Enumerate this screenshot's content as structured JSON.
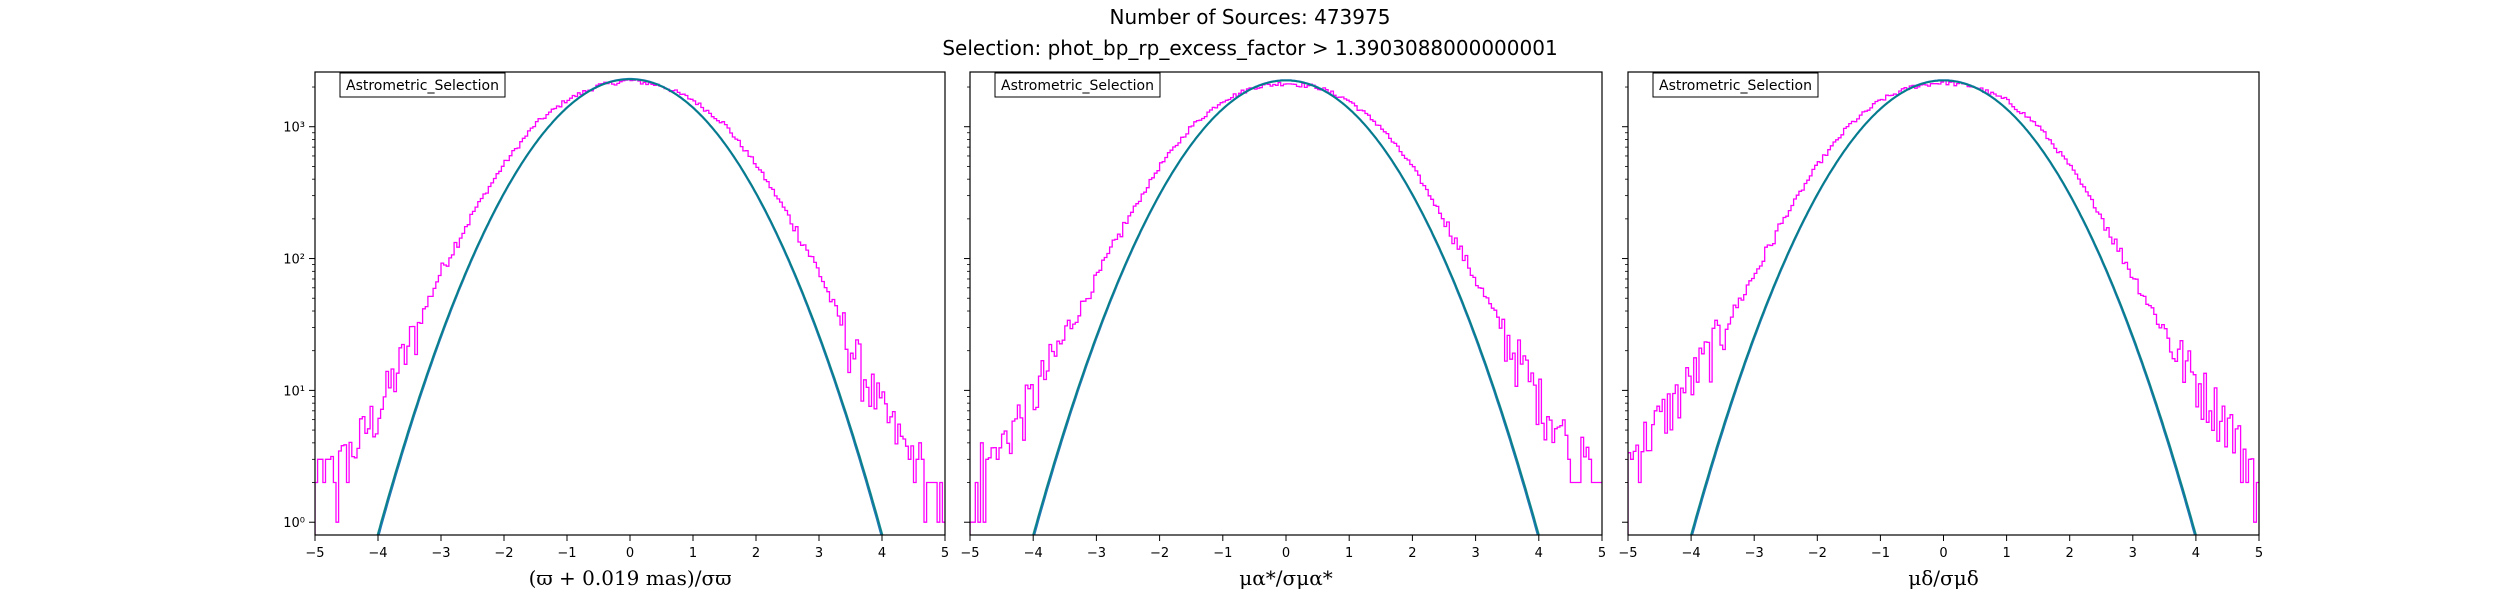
{
  "figure": {
    "title_line1": "Number of Sources: 473975",
    "title_line2": "Selection: phot_bp_rp_excess_factor > 1.3903088000000001"
  },
  "colors": {
    "histogram": "#ff00ff",
    "gaussian_fit": "#1f77b4",
    "gaussian_fit_overlay": "#008080",
    "axes": "#000000"
  },
  "chart_data": [
    {
      "type": "line",
      "panel": "left",
      "yscale": "log",
      "xlim": [
        -5,
        5
      ],
      "ylim": [
        0.8,
        2600
      ],
      "xticks": [
        -5,
        -4,
        -3,
        -2,
        -1,
        0,
        1,
        2,
        3,
        4,
        5
      ],
      "xtick_labels": [
        "−5",
        "−4",
        "−3",
        "−2",
        "−1",
        "0",
        "1",
        "2",
        "3",
        "4",
        "5"
      ],
      "yticks": [
        1,
        10,
        100,
        1000
      ],
      "ytick_labels": [
        "10⁰",
        "10¹",
        "10²",
        "10³"
      ],
      "xlabel": "(ϖ + 0.019 mas)/σϖ",
      "legend": "Astrometric_Selection",
      "legend_position": "top-left",
      "grid": false,
      "series": [
        {
          "name": "Astrometric_Selection",
          "kind": "histogram",
          "x": [
            -5,
            -4.5,
            -4,
            -3.5,
            -3,
            -2.5,
            -2,
            -1.5,
            -1,
            -0.5,
            0,
            0.5,
            1,
            1.5,
            2,
            2.5,
            3,
            3.5,
            4,
            4.5,
            5
          ],
          "y": [
            2,
            3,
            7,
            22,
            80,
            220,
            520,
            1050,
            1600,
            2050,
            2250,
            2050,
            1600,
            1050,
            520,
            220,
            80,
            22,
            7,
            3,
            1
          ]
        },
        {
          "kind": "gaussian",
          "amplitude": 2300,
          "mean": 0,
          "sigma": 1.0
        }
      ]
    },
    {
      "type": "line",
      "panel": "middle",
      "yscale": "log",
      "xlim": [
        -5,
        5
      ],
      "ylim": [
        0.8,
        2600
      ],
      "xticks": [
        -5,
        -4,
        -3,
        -2,
        -1,
        0,
        1,
        2,
        3,
        4,
        5
      ],
      "xtick_labels": [
        "−5",
        "−4",
        "−3",
        "−2",
        "−1",
        "0",
        "1",
        "2",
        "3",
        "4",
        "5"
      ],
      "xlabel": "μα*/σμα*",
      "legend": "Astrometric_Selection",
      "legend_position": "top-left",
      "grid": false,
      "series": [
        {
          "name": "Astrometric_Selection",
          "kind": "histogram",
          "x": [
            -5,
            -4.5,
            -4,
            -3.5,
            -3,
            -2.5,
            -2,
            -1.5,
            -1,
            -0.5,
            0,
            0.5,
            1,
            1.5,
            2,
            2.5,
            3,
            3.5,
            4,
            4.5,
            5
          ],
          "y": [
            2,
            4,
            9,
            25,
            70,
            200,
            500,
            1000,
            1580,
            2000,
            2150,
            2000,
            1580,
            1000,
            500,
            200,
            70,
            25,
            9,
            4,
            2
          ]
        },
        {
          "kind": "gaussian",
          "amplitude": 2250,
          "mean": 0,
          "sigma": 1.0
        }
      ]
    },
    {
      "type": "line",
      "panel": "right",
      "yscale": "log",
      "xlim": [
        -5,
        5
      ],
      "ylim": [
        0.8,
        2600
      ],
      "xticks": [
        -5,
        -4,
        -3,
        -2,
        -1,
        0,
        1,
        2,
        3,
        4,
        5
      ],
      "xtick_labels": [
        "−5",
        "−4",
        "−3",
        "−2",
        "−1",
        "0",
        "1",
        "2",
        "3",
        "4",
        "5"
      ],
      "xlabel": "μδ/σμδ",
      "legend": "Astrometric_Selection",
      "legend_position": "top-left",
      "grid": false,
      "series": [
        {
          "name": "Astrometric_Selection",
          "kind": "histogram",
          "x": [
            -5,
            -4.5,
            -4,
            -3.5,
            -3,
            -2.5,
            -2,
            -1.5,
            -1,
            -0.5,
            0,
            0.5,
            1,
            1.5,
            2,
            2.5,
            3,
            3.5,
            4,
            4.5,
            5
          ],
          "y": [
            3,
            6,
            12,
            28,
            75,
            210,
            510,
            1020,
            1590,
            2010,
            2180,
            2010,
            1590,
            1020,
            510,
            210,
            75,
            28,
            12,
            6,
            2
          ]
        },
        {
          "kind": "gaussian",
          "amplitude": 2250,
          "mean": 0,
          "sigma": 1.0
        }
      ]
    }
  ]
}
